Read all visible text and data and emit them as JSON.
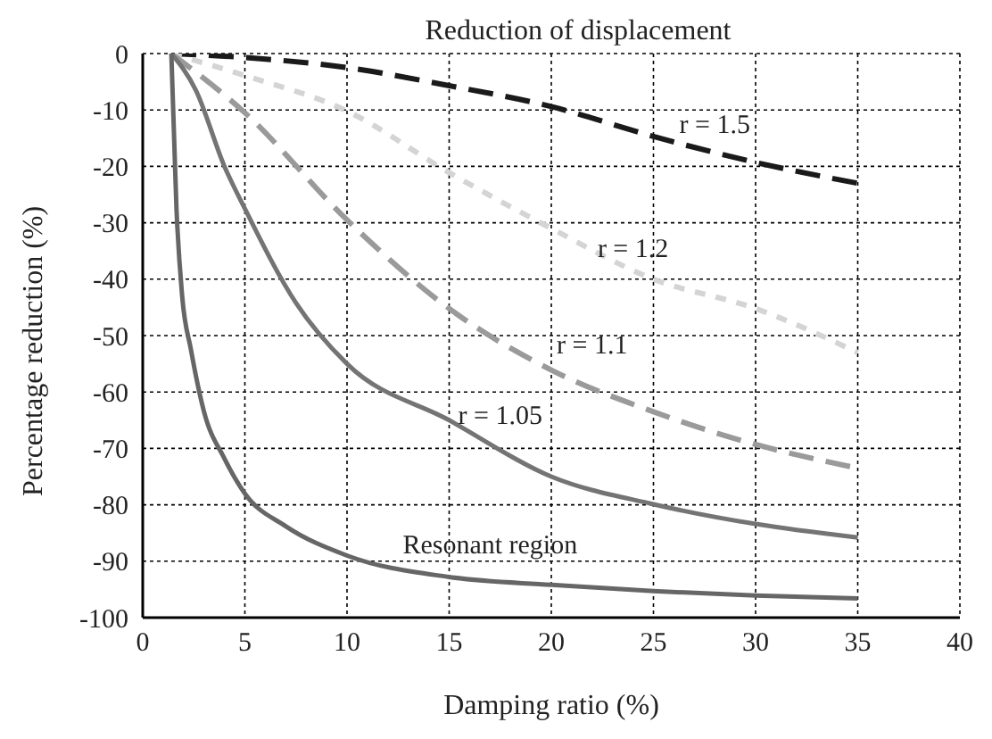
{
  "chart_data": {
    "type": "line",
    "title": "Reduction of displacement",
    "xlabel": "Damping ratio (%)",
    "ylabel": "Percentage reduction (%)",
    "xlim": [
      0,
      40
    ],
    "xticks": [
      0,
      5,
      10,
      15,
      20,
      25,
      30,
      35,
      40
    ],
    "ylim": [
      -100,
      0
    ],
    "yticks": [
      0,
      -10,
      -20,
      -30,
      -40,
      -50,
      -60,
      -70,
      -80,
      -90,
      -100
    ],
    "grid": true,
    "legend": false,
    "marker": "none",
    "series": [
      {
        "name": "r = 1.5",
        "color": "#1a1a1a",
        "line_style": "dashed",
        "x": [
          1.4,
          5,
          10,
          15,
          20,
          25,
          30,
          35
        ],
        "values": [
          0,
          -0.7,
          -2.5,
          -5.7,
          -9.4,
          -14.7,
          -19.3,
          -23
        ]
      },
      {
        "name": "r = 1.2",
        "color": "#d4d4d4",
        "line_style": "dotted",
        "x": [
          1.4,
          5,
          10,
          15,
          20,
          25,
          30,
          35
        ],
        "values": [
          0,
          -3.9,
          -10.2,
          -21.1,
          -31,
          -40,
          -45.2,
          -53
        ]
      },
      {
        "name": "r = 1.1",
        "color": "#9a9a9a",
        "line_style": "dashed",
        "x": [
          1.4,
          5,
          10,
          15,
          20,
          25,
          30,
          35
        ],
        "values": [
          0,
          -10.5,
          -29.5,
          -45.2,
          -56.1,
          -63.5,
          -69.3,
          -73.5
        ]
      },
      {
        "name": "r = 1.05",
        "color": "#747474",
        "line_style": "solid",
        "x": [
          1.4,
          2.6,
          4,
          5,
          7.5,
          10,
          15,
          20,
          25,
          30,
          35
        ],
        "values": [
          0,
          -6.5,
          -20,
          -27.5,
          -44.2,
          -55,
          -65,
          -75,
          -79.9,
          -83.4,
          -85.8
        ]
      },
      {
        "name": "Resonant region",
        "color": "#666666",
        "line_style": "solid",
        "x": [
          1.4,
          1.65,
          1.93,
          2.36,
          3,
          4,
          5,
          7,
          10,
          15,
          20,
          25,
          30,
          35
        ],
        "values": [
          0,
          -27.4,
          -43,
          -52.5,
          -63.5,
          -71.8,
          -78,
          -83.8,
          -89,
          -92.8,
          -94.2,
          -95.3,
          -96.1,
          -96.6
        ]
      }
    ]
  }
}
